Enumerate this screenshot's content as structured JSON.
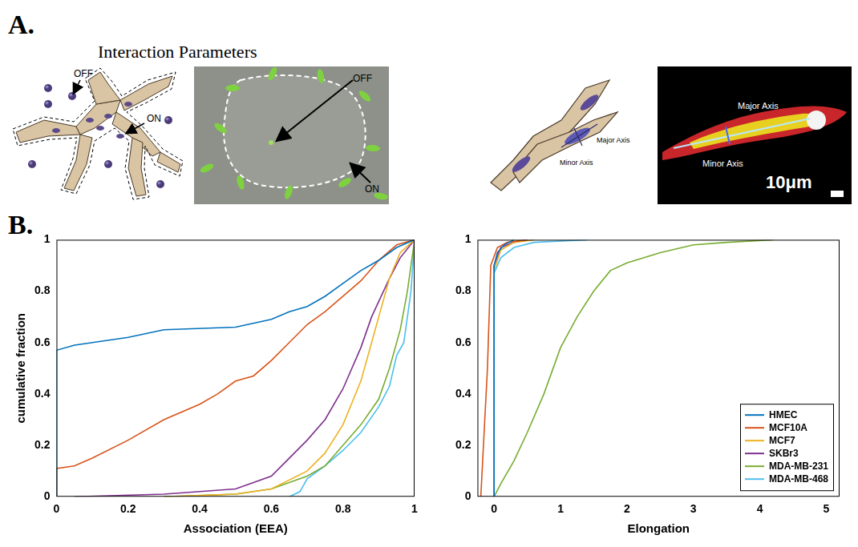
{
  "panel_labels": [
    "A.",
    "B."
  ],
  "panel_a": {
    "title": "Interaction Parameters",
    "schematic": {
      "off": "OFF",
      "on": "ON"
    },
    "micrograph": {
      "off": "OFF",
      "on": "ON"
    },
    "elongation_schematic": {
      "major": "Major Axis",
      "minor": "Minor Axis"
    },
    "elongation_image": {
      "major": "Major Axis",
      "minor": "Minor Axis",
      "scale_bar": "10μm"
    }
  },
  "chart_data": [
    {
      "type": "line",
      "x_label": "Association (EEA)",
      "y_label": "cumulative fraction",
      "xlim": [
        0,
        1
      ],
      "xticks": [
        0,
        0.2,
        0.4,
        0.6,
        0.8,
        1
      ],
      "ylim": [
        0,
        1
      ],
      "yticks": [
        0,
        0.2,
        0.4,
        0.6,
        0.8,
        1
      ],
      "grid": false,
      "series": [
        {
          "color": "#0072BD",
          "x": [
            0,
            0,
            0.05,
            0.1,
            0.2,
            0.3,
            0.5,
            0.6,
            0.65,
            0.7,
            0.75,
            0.8,
            0.85,
            0.9,
            0.95,
            1
          ],
          "values": [
            0,
            0.57,
            0.59,
            0.6,
            0.62,
            0.65,
            0.66,
            0.69,
            0.72,
            0.74,
            0.78,
            0.83,
            0.88,
            0.92,
            0.97,
            1
          ]
        },
        {
          "color": "#D95319",
          "x": [
            0,
            0,
            0.05,
            0.1,
            0.2,
            0.3,
            0.4,
            0.45,
            0.5,
            0.55,
            0.6,
            0.65,
            0.7,
            0.75,
            0.8,
            0.85,
            0.9,
            0.95,
            1
          ],
          "values": [
            0,
            0.11,
            0.12,
            0.15,
            0.22,
            0.3,
            0.36,
            0.4,
            0.45,
            0.47,
            0.53,
            0.6,
            0.67,
            0.72,
            0.78,
            0.84,
            0.92,
            0.98,
            1
          ]
        },
        {
          "color": "#EDB120",
          "x": [
            0.3,
            0.5,
            0.6,
            0.7,
            0.75,
            0.8,
            0.85,
            0.88,
            0.9,
            0.93,
            0.96,
            1
          ],
          "values": [
            0,
            0.01,
            0.03,
            0.1,
            0.17,
            0.28,
            0.45,
            0.6,
            0.7,
            0.85,
            0.95,
            1
          ]
        },
        {
          "color": "#7E2F8E",
          "x": [
            0.05,
            0.3,
            0.5,
            0.6,
            0.65,
            0.7,
            0.75,
            0.8,
            0.85,
            0.88,
            0.9,
            0.93,
            0.96,
            1
          ],
          "values": [
            0,
            0.01,
            0.03,
            0.08,
            0.15,
            0.22,
            0.3,
            0.42,
            0.58,
            0.7,
            0.76,
            0.85,
            0.93,
            1
          ]
        },
        {
          "color": "#77AC30",
          "x": [
            0.3,
            0.5,
            0.6,
            0.7,
            0.75,
            0.8,
            0.85,
            0.9,
            0.93,
            0.96,
            0.98,
            1
          ],
          "values": [
            0,
            0.01,
            0.03,
            0.08,
            0.12,
            0.2,
            0.28,
            0.38,
            0.5,
            0.65,
            0.8,
            1
          ]
        },
        {
          "color": "#4DBEEE",
          "x": [
            0.65,
            0.68,
            0.7,
            0.75,
            0.8,
            0.85,
            0.9,
            0.93,
            0.95,
            0.97,
            0.99,
            1
          ],
          "values": [
            0,
            0.02,
            0.07,
            0.12,
            0.18,
            0.25,
            0.35,
            0.43,
            0.55,
            0.6,
            0.8,
            1
          ]
        }
      ]
    },
    {
      "type": "line",
      "x_label": "Elongation",
      "xlim": [
        -0.25,
        5.2
      ],
      "xticks": [
        0,
        1,
        2,
        3,
        4,
        5
      ],
      "ylim": [
        0,
        1
      ],
      "yticks": [
        0,
        0.2,
        0.4,
        0.6,
        0.8,
        1
      ],
      "grid": false,
      "legend": "lower right",
      "series": [
        {
          "name": "HMEC",
          "color": "#0072BD",
          "x": [
            0,
            0,
            0.05,
            0.15,
            0.3
          ],
          "values": [
            0,
            0.9,
            0.95,
            0.98,
            1
          ]
        },
        {
          "name": "MCF10A",
          "color": "#D95319",
          "x": [
            -0.2,
            -0.1,
            -0.05,
            0.05,
            0.2,
            0.5
          ],
          "values": [
            0,
            0.5,
            0.9,
            0.97,
            0.99,
            1
          ]
        },
        {
          "name": "MCF7",
          "color": "#EDB120",
          "x": [
            0,
            0,
            0.1,
            0.3,
            0.6
          ],
          "values": [
            0,
            0.88,
            0.96,
            0.99,
            1
          ]
        },
        {
          "name": "SKBr3",
          "color": "#7E2F8E",
          "x": [
            0,
            0,
            0.1,
            0.3,
            0.5
          ],
          "values": [
            0,
            0.9,
            0.97,
            0.99,
            1
          ]
        },
        {
          "name": "MDA-MB-231",
          "color": "#77AC30",
          "x": [
            0,
            0.1,
            0.3,
            0.5,
            0.75,
            1,
            1.25,
            1.5,
            1.75,
            2,
            2.5,
            3,
            3.5,
            4.2
          ],
          "values": [
            0,
            0.05,
            0.14,
            0.25,
            0.4,
            0.58,
            0.7,
            0.8,
            0.88,
            0.91,
            0.95,
            0.98,
            0.99,
            1
          ]
        },
        {
          "name": "MDA-MB-468",
          "color": "#4DBEEE",
          "x": [
            0,
            0,
            0.1,
            0.3,
            0.6,
            1.4
          ],
          "values": [
            0,
            0.87,
            0.93,
            0.97,
            0.99,
            1
          ]
        }
      ]
    }
  ]
}
